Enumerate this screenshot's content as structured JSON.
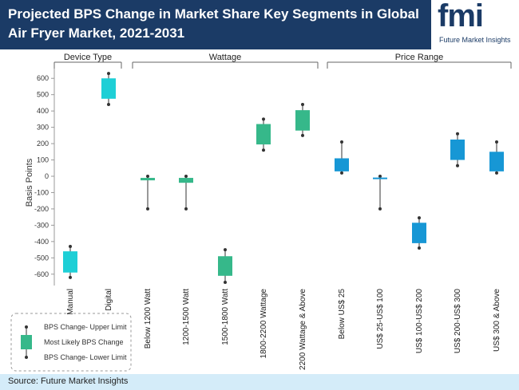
{
  "header": {
    "title": "Projected BPS Change in Market Share Key Segments in Global Air Fryer Market, 2021-2031"
  },
  "logo": {
    "mark": "fmi",
    "tagline": "Future Market Insights"
  },
  "footer": {
    "source": "Source: Future Market Insights"
  },
  "legend": {
    "upper": "BPS Change- Upper Limit",
    "likely": "Most Likely BPS Change",
    "lower": "BPS Change- Lower Limit"
  },
  "colors": {
    "device": "#1ecfd6",
    "wattage": "#36b88a",
    "price": "#1797d5",
    "header": "#1b3b66"
  },
  "chart_data": {
    "type": "box",
    "ylabel": "Basis Points",
    "ylim": [
      -650,
      650
    ],
    "yticks": [
      -600,
      -500,
      -400,
      -300,
      -200,
      -100,
      0,
      100,
      200,
      300,
      400,
      500,
      600
    ],
    "groups": [
      {
        "name": "Device Type",
        "color": "#1ecfd6",
        "items": [
          {
            "label": "Manual",
            "low": -620,
            "q1": -590,
            "q3": -460,
            "high": -430
          },
          {
            "label": "Digital",
            "low": 440,
            "q1": 475,
            "q3": 600,
            "high": 630
          }
        ]
      },
      {
        "name": "Wattage",
        "color": "#36b88a",
        "items": [
          {
            "label": "Below 1200 Watt",
            "low": -200,
            "q1": -25,
            "q3": -10,
            "high": 0
          },
          {
            "label": "1200-1500 Watt",
            "low": -200,
            "q1": -40,
            "q3": -10,
            "high": 0
          },
          {
            "label": "1500-1800 Watt",
            "low": -650,
            "q1": -610,
            "q3": -490,
            "high": -450
          },
          {
            "label": "1800-2200 Wattage",
            "low": 160,
            "q1": 195,
            "q3": 320,
            "high": 350
          },
          {
            "label": "2200 Wattage & Above",
            "low": 250,
            "q1": 280,
            "q3": 405,
            "high": 440
          }
        ]
      },
      {
        "name": "Price Range",
        "color": "#1797d5",
        "items": [
          {
            "label": "Below US$ 25",
            "low": 20,
            "q1": 30,
            "q3": 110,
            "high": 210
          },
          {
            "label": "US$ 25-US$ 100",
            "low": -200,
            "q1": -12,
            "q3": -8,
            "high": 0
          },
          {
            "label": "US$ 100-US$ 200",
            "low": -440,
            "q1": -410,
            "q3": -285,
            "high": -255
          },
          {
            "label": "US$ 200-US$ 300",
            "low": 65,
            "q1": 100,
            "q3": 225,
            "high": 260
          },
          {
            "label": "US$ 300 & Above",
            "low": 20,
            "q1": 30,
            "q3": 150,
            "high": 210
          }
        ]
      }
    ]
  }
}
